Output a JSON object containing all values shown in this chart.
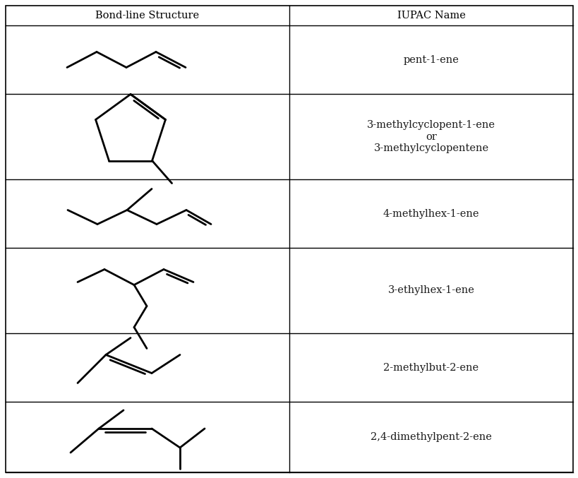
{
  "col1_header": "Bond-line Structure",
  "col2_header": "IUPAC Name",
  "iupac_names": [
    "pent-1-ene",
    "3-methylcyclopent-1-ene\nor\n3-methylcyclopentene",
    "4-methylhex-1-ene",
    "3-ethylhex-1-ene",
    "2-methylbut-2-ene",
    "2,4-dimethylpent-2-ene"
  ],
  "bg_color": "#ffffff",
  "line_color": "#000000",
  "text_color": "#1a1a1a",
  "header_fontsize": 10.5,
  "name_fontsize": 10.5
}
